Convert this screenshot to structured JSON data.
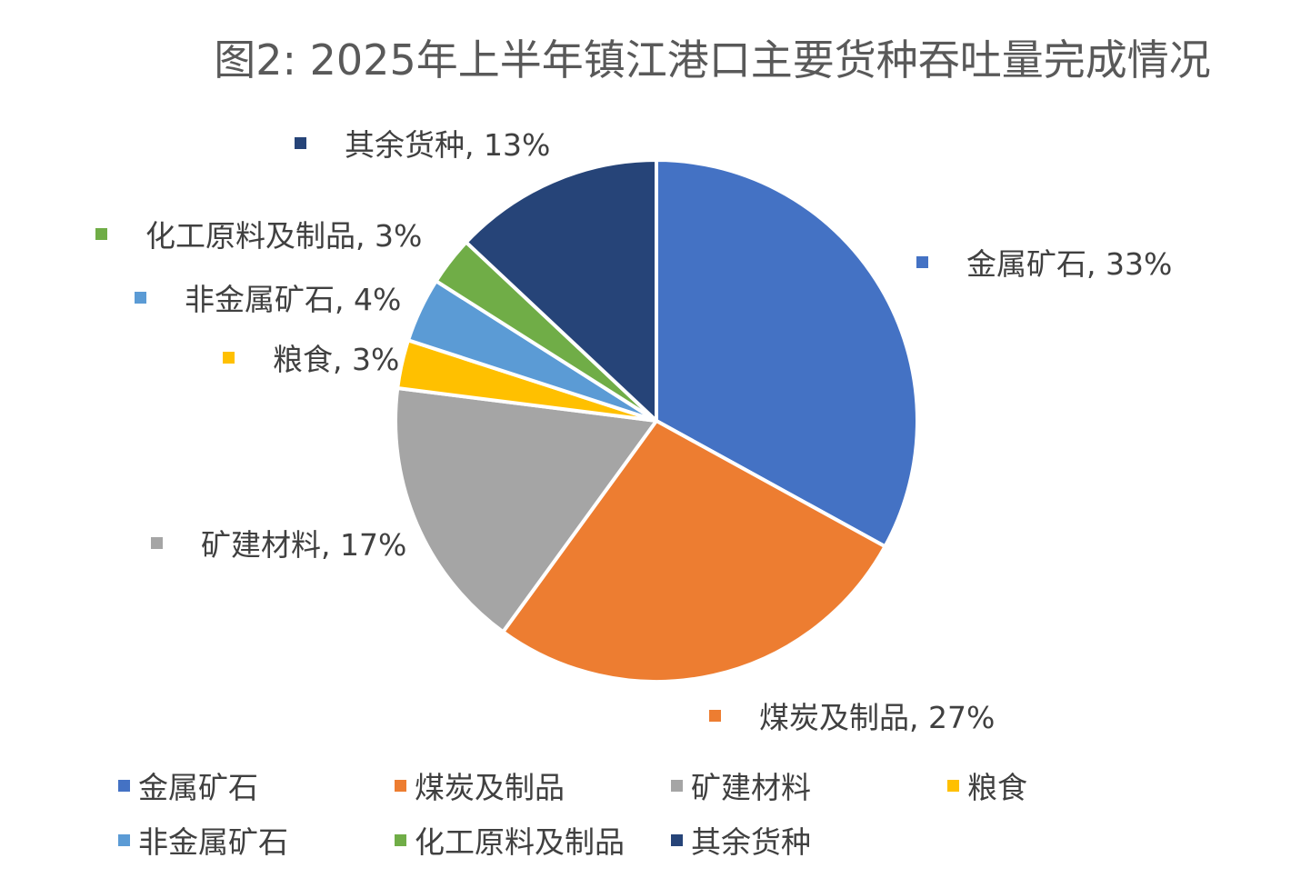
{
  "chart_data": {
    "type": "pie",
    "title": "图2: 2025年上半年镇江港口主要货种吞吐量完成情况",
    "slices": [
      {
        "label": "金属矿石",
        "value": 33,
        "display": "33%",
        "color": "#4472C4"
      },
      {
        "label": "煤炭及制品",
        "value": 27,
        "display": "27%",
        "color": "#ED7D31"
      },
      {
        "label": "矿建材料",
        "value": 17,
        "display": "17%",
        "color": "#A5A5A5"
      },
      {
        "label": "粮食",
        "value": 3,
        "display": "3%",
        "color": "#FFC000"
      },
      {
        "label": "非金属矿石",
        "value": 4,
        "display": "4%",
        "color": "#5B9BD5"
      },
      {
        "label": "化工原料及制品",
        "value": 3,
        "display": "3%",
        "color": "#70AD47"
      },
      {
        "label": "其余货种",
        "value": 13,
        "display": "13%",
        "color": "#264478"
      }
    ],
    "legend_position": "bottom"
  }
}
